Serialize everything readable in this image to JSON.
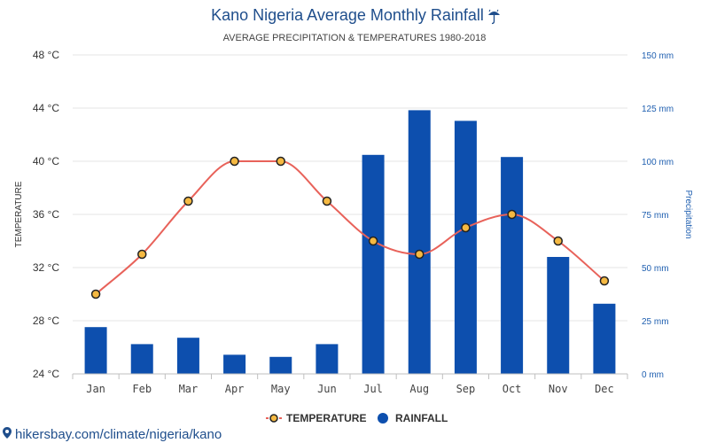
{
  "header": {
    "title": "Kano Nigeria Average Monthly Rainfall",
    "subtitle": "AVERAGE PRECIPITATION & TEMPERATURES 1980-2018"
  },
  "footer": {
    "source": "hikersbay.com/climate/nigeria/kano"
  },
  "colors": {
    "rainfall_bar": "#0d4fae",
    "temperature_line": "#e8625a",
    "marker_fill": "#f5b942",
    "title": "#1f4e8c"
  },
  "icons": {
    "title_icon": "umbrella-rain-icon",
    "source_icon": "map-pin-icon"
  },
  "chart_data": {
    "type": "bar",
    "categories": [
      "Jan",
      "Feb",
      "Mar",
      "Apr",
      "May",
      "Jun",
      "Jul",
      "Aug",
      "Sep",
      "Oct",
      "Nov",
      "Dec"
    ],
    "series": [
      {
        "name": "TEMPERATURE",
        "type": "line",
        "axis": "left",
        "unit": "°C",
        "values": [
          30,
          33,
          37,
          40,
          40,
          37,
          34,
          33,
          35,
          36,
          34,
          31
        ]
      },
      {
        "name": "RAINFALL",
        "type": "bar",
        "axis": "right",
        "unit": "mm",
        "values": [
          22,
          14,
          17,
          9,
          8,
          14,
          103,
          124,
          119,
          102,
          55,
          33
        ]
      }
    ],
    "ylabel_left": "TEMPERATURE",
    "ylabel_right": "Precipitation",
    "ylim_left": [
      24,
      48
    ],
    "ylim_right": [
      0,
      150
    ],
    "yticks_left": [
      "24 °C",
      "28 °C",
      "32 °C",
      "36 °C",
      "40 °C",
      "44 °C",
      "48 °C"
    ],
    "yticks_left_values": [
      24,
      28,
      32,
      36,
      40,
      44,
      48
    ],
    "yticks_right": [
      "0 mm",
      "25 mm",
      "50 mm",
      "75 mm",
      "100 mm",
      "125 mm",
      "150 mm"
    ],
    "yticks_right_values": [
      0,
      25,
      50,
      75,
      100,
      125,
      150
    ],
    "grid": true,
    "legend_position": "bottom-center"
  }
}
